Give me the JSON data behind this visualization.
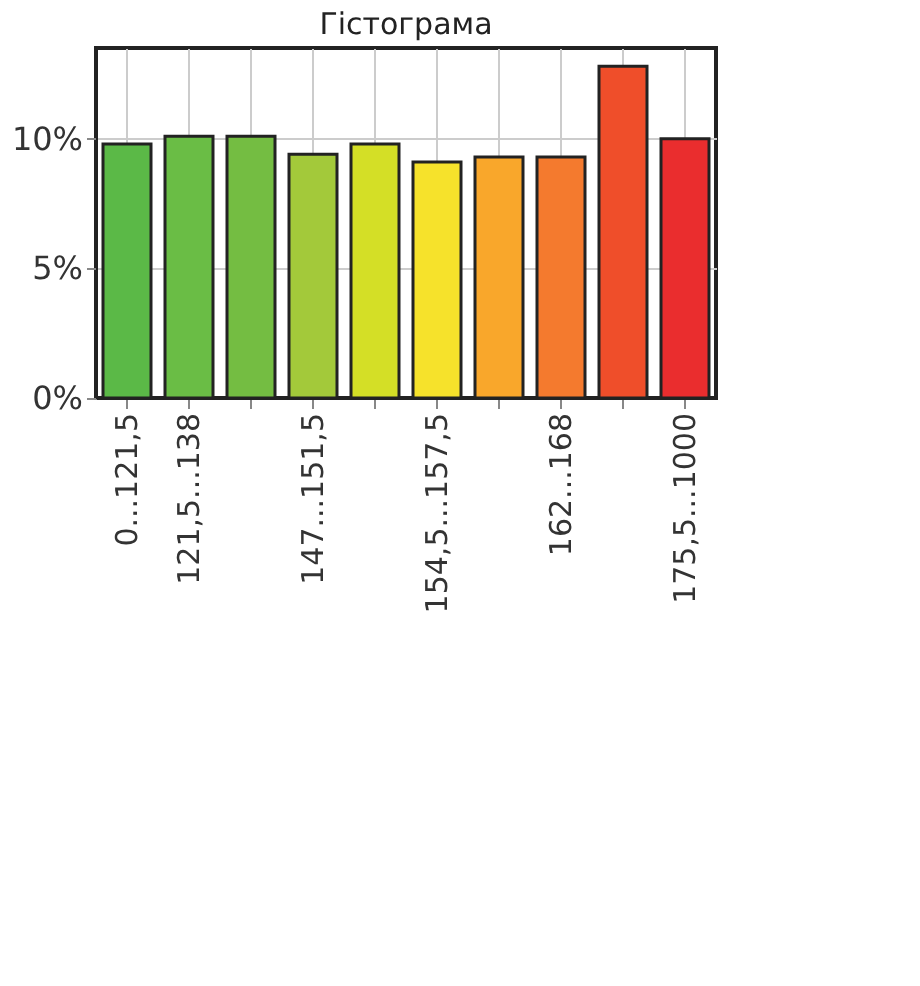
{
  "chart_data": {
    "type": "bar",
    "title": "Гістограма",
    "categories": [
      "0...121,5",
      "121,5...138",
      null,
      "147...151,5",
      null,
      "154,5...157,5",
      null,
      "162...168",
      null,
      "175,5...1000"
    ],
    "values": [
      9.8,
      10.1,
      10.1,
      9.4,
      9.8,
      9.1,
      9.3,
      9.3,
      12.8,
      10.0
    ],
    "colors": [
      "#5bb947",
      "#6abd45",
      "#74bd42",
      "#a3c93a",
      "#d4df26",
      "#f6e22b",
      "#f9a72b",
      "#f47a2e",
      "#ef4e2a",
      "#ea2d2e"
    ],
    "ylim": [
      0,
      13.5
    ],
    "yticks": [
      {
        "value": 0,
        "label": "0%"
      },
      {
        "value": 5,
        "label": "5%"
      },
      {
        "value": 10,
        "label": "10%"
      }
    ],
    "grid": true
  }
}
